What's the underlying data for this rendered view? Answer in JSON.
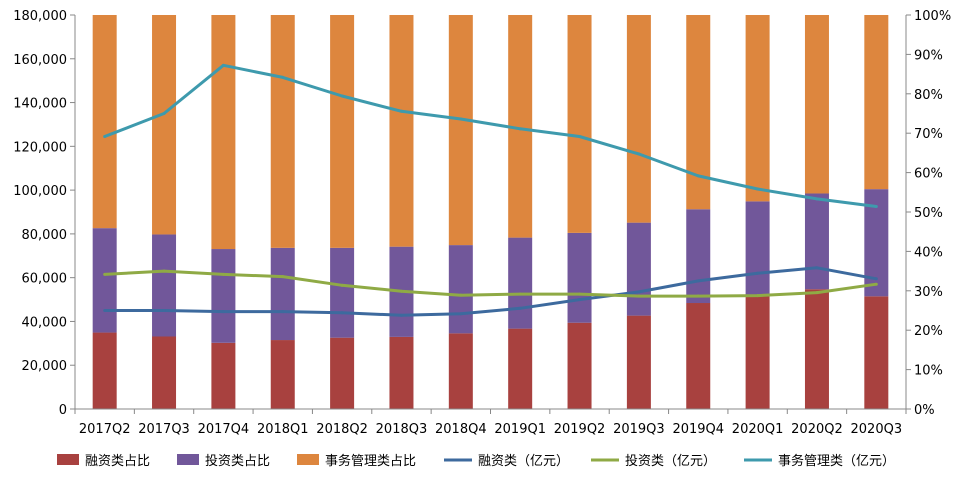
{
  "chart_data": {
    "type": "bar",
    "stacked": true,
    "percent_stacked_bars": true,
    "categories": [
      "2017Q2",
      "2017Q3",
      "2017Q4",
      "2018Q1",
      "2018Q2",
      "2018Q3",
      "2018Q4",
      "2019Q1",
      "2019Q2",
      "2019Q3",
      "2019Q4",
      "2020Q1",
      "2020Q2",
      "2020Q3"
    ],
    "bar_series": [
      {
        "name": "融资类占比",
        "color": "#A8413F",
        "values": [
          19.4,
          18.4,
          16.8,
          17.5,
          18.1,
          18.3,
          19.2,
          20.4,
          21.9,
          23.7,
          26.9,
          29.0,
          30.4,
          28.6
        ]
      },
      {
        "name": "投资类占比",
        "color": "#71579A",
        "values": [
          26.5,
          25.9,
          23.8,
          23.4,
          22.8,
          22.9,
          22.4,
          23.1,
          22.8,
          23.6,
          23.8,
          23.7,
          24.3,
          27.2
        ]
      },
      {
        "name": "事务管理类占比",
        "color": "#DD863E",
        "values": [
          54.1,
          55.7,
          59.4,
          59.1,
          59.1,
          58.8,
          58.4,
          56.5,
          55.3,
          52.7,
          49.3,
          47.3,
          45.3,
          44.2
        ]
      }
    ],
    "line_series": [
      {
        "name": "融资类（亿元）",
        "color": "#3D6A9E",
        "values": [
          45000,
          45000,
          44500,
          44500,
          44000,
          42800,
          43500,
          46000,
          50000,
          53500,
          58500,
          62000,
          64500,
          59500
        ]
      },
      {
        "name": "投资类（亿元）",
        "color": "#8FAA45",
        "values": [
          61500,
          63000,
          61500,
          60500,
          56500,
          53800,
          52000,
          52500,
          52500,
          51600,
          51600,
          51800,
          53200,
          57000
        ]
      },
      {
        "name": "事务管理类（亿元）",
        "color": "#3E9AAD",
        "values": [
          124500,
          135000,
          157000,
          151500,
          143000,
          136000,
          132500,
          128000,
          124500,
          116500,
          106500,
          100500,
          96000,
          92500
        ]
      }
    ],
    "left_axis": {
      "min": 0,
      "max": 180000,
      "step": 20000,
      "tick_labels": [
        "0",
        "20,000",
        "40,000",
        "60,000",
        "80,000",
        "100,000",
        "120,000",
        "140,000",
        "160,000",
        "180,000"
      ]
    },
    "right_axis": {
      "min": 0,
      "max": 100,
      "step": 10,
      "tick_labels": [
        "0%",
        "10%",
        "20%",
        "30%",
        "40%",
        "50%",
        "60%",
        "70%",
        "80%",
        "90%",
        "100%"
      ]
    },
    "legend_position": "bottom",
    "grid": false
  }
}
